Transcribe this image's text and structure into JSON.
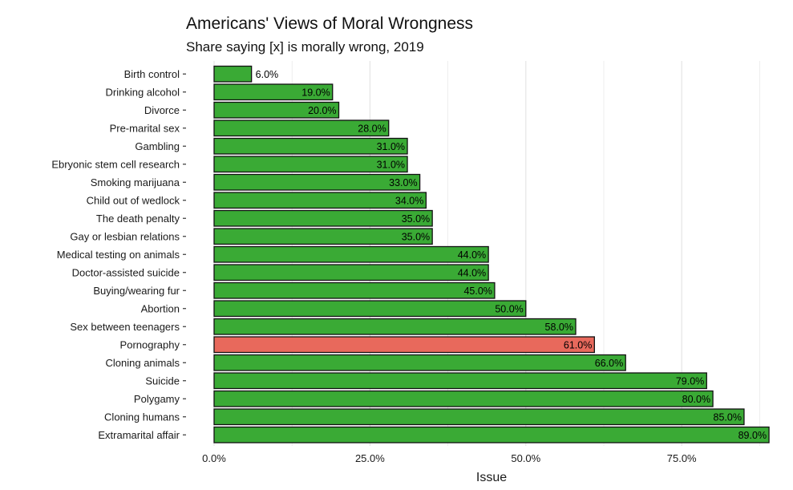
{
  "chart_data": {
    "type": "bar",
    "orientation": "horizontal",
    "title": "Americans' Views of Moral Wrongness",
    "subtitle": "Share saying [x] is morally wrong, 2019",
    "xlabel": "Issue",
    "ylabel": "",
    "xlim": [
      0,
      90
    ],
    "xticks": [
      0,
      25,
      50,
      75
    ],
    "xtick_labels": [
      "0.0%",
      "25.0%",
      "50.0%",
      "75.0%"
    ],
    "grid": "vertical",
    "categories": [
      "Birth control",
      "Drinking alcohol",
      "Divorce",
      "Pre-marital sex",
      "Gambling",
      "Ebryonic stem cell research",
      "Smoking marijuana",
      "Child out of wedlock",
      "The death penalty",
      "Gay or lesbian relations",
      "Medical testing on animals",
      "Doctor-assisted suicide",
      "Buying/wearing fur",
      "Abortion",
      "Sex between teenagers",
      "Pornography",
      "Cloning animals",
      "Suicide",
      "Polygamy",
      "Cloning humans",
      "Extramarital affair"
    ],
    "values": [
      6,
      19,
      20,
      28,
      31,
      31,
      33,
      34,
      35,
      35,
      44,
      44,
      45,
      50,
      58,
      61,
      66,
      79,
      80,
      85,
      89
    ],
    "value_labels": [
      "6.0%",
      "19.0%",
      "20.0%",
      "28.0%",
      "31.0%",
      "31.0%",
      "33.0%",
      "34.0%",
      "35.0%",
      "35.0%",
      "44.0%",
      "44.0%",
      "45.0%",
      "50.0%",
      "58.0%",
      "61.0%",
      "66.0%",
      "79.0%",
      "80.0%",
      "85.0%",
      "89.0%"
    ],
    "highlight_category": "Pornography",
    "colors": {
      "bar": "#3aaa35",
      "highlight": "#e8695c",
      "bar_border": "#111111",
      "grid": "#e3e3e3"
    }
  }
}
